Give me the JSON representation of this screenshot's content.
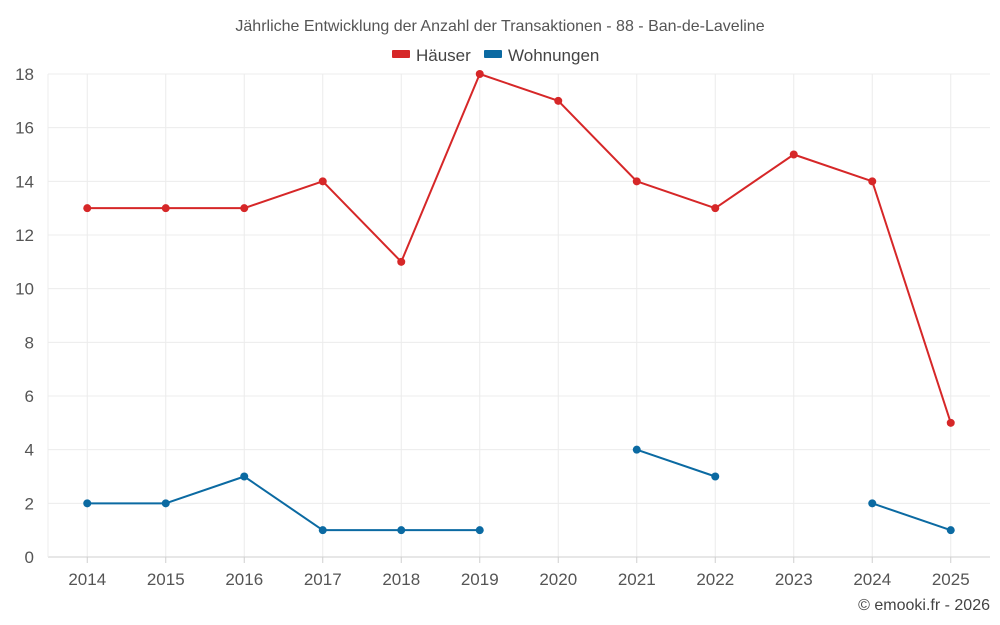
{
  "chart_data": {
    "type": "line",
    "title": "Jährliche Entwicklung der Anzahl der Transaktionen - 88 - Ban-de-Laveline",
    "categories": [
      "2014",
      "2015",
      "2016",
      "2017",
      "2018",
      "2019",
      "2020",
      "2021",
      "2022",
      "2023",
      "2024",
      "2025"
    ],
    "series": [
      {
        "name": "Häuser",
        "color": "#d62728",
        "values": [
          13,
          13,
          13,
          14,
          11,
          18,
          17,
          14,
          13,
          15,
          14,
          5
        ]
      },
      {
        "name": "Wohnungen",
        "color": "#0b6aa2",
        "values": [
          2,
          2,
          3,
          1,
          1,
          1,
          null,
          4,
          3,
          null,
          2,
          1
        ]
      }
    ],
    "ylim": [
      0,
      18
    ],
    "yticks": [
      0,
      2,
      4,
      6,
      8,
      10,
      12,
      14,
      16,
      18
    ],
    "xlabel": "",
    "ylabel": "",
    "legend": "top-center",
    "grid": true
  },
  "credit": "© emooki.fr - 2026"
}
